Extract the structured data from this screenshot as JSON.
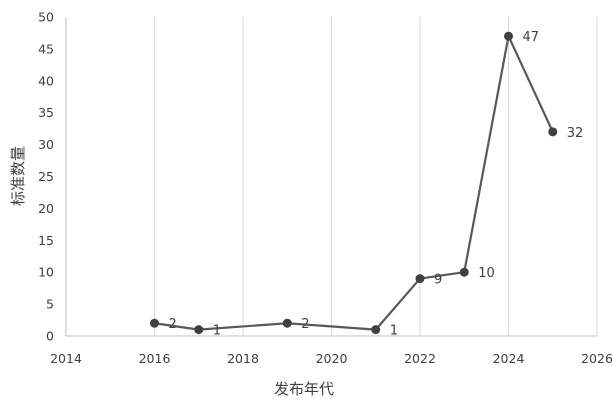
{
  "chart_data": {
    "type": "scatter",
    "xlabel": "发布年代",
    "ylabel": "标准数量",
    "xlim": [
      2014,
      2026
    ],
    "ylim": [
      0,
      50
    ],
    "x_ticks": [
      "2014",
      "2016",
      "2018",
      "2020",
      "2022",
      "2024",
      "2026"
    ],
    "y_ticks": [
      "0",
      "5",
      "10",
      "15",
      "20",
      "25",
      "30",
      "35",
      "40",
      "45",
      "50"
    ],
    "grid": "vertical",
    "legend": "none",
    "colors": {
      "line": "#595959",
      "marker": "#404040",
      "grid": "#d9d9d9",
      "axis": "#bfbfbf",
      "text": "#404040"
    },
    "series": [
      {
        "points": [
          {
            "x": 2016,
            "y": 2,
            "label": "2"
          },
          {
            "x": 2017,
            "y": 1,
            "label": "1"
          },
          {
            "x": 2019,
            "y": 2,
            "label": "2"
          },
          {
            "x": 2021,
            "y": 1,
            "label": "1"
          },
          {
            "x": 2022,
            "y": 9,
            "label": "9"
          },
          {
            "x": 2023,
            "y": 10,
            "label": "10"
          },
          {
            "x": 2024,
            "y": 47,
            "label": "47"
          },
          {
            "x": 2025,
            "y": 32,
            "label": "32"
          }
        ]
      }
    ]
  }
}
